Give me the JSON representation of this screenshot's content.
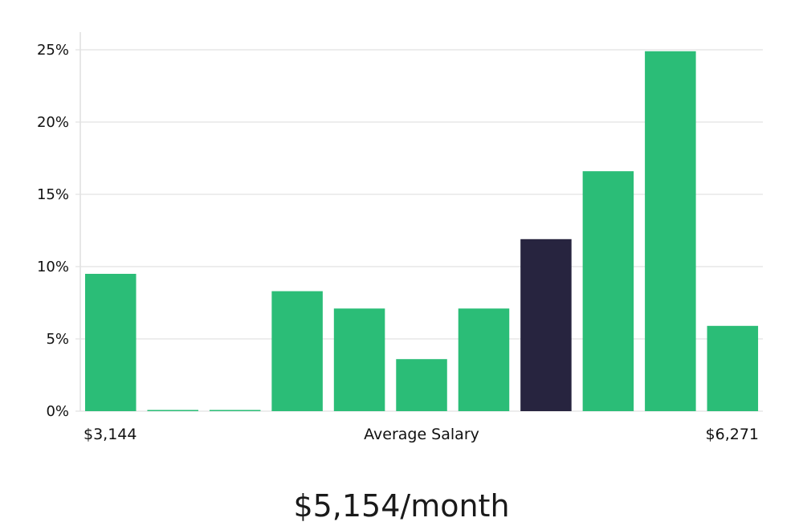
{
  "chart_data": {
    "type": "bar",
    "title": "",
    "xlabel": "Average Salary",
    "ylabel": "",
    "x_min_label": "$3,144",
    "x_max_label": "$6,271",
    "ylim": [
      0,
      25
    ],
    "yticks": [
      "0%",
      "5%",
      "10%",
      "15%",
      "20%",
      "25%"
    ],
    "values": [
      9.5,
      0,
      0,
      8.3,
      7.1,
      3.6,
      7.1,
      11.9,
      16.6,
      24.9,
      5.9
    ],
    "highlight_index": 7,
    "colors": {
      "bar": "#2bbd77",
      "highlight": "#27243f",
      "grid": "#e2e2e2",
      "axis": "#cfcfcf"
    }
  },
  "summary": {
    "salary_text": "$5,154/month"
  }
}
